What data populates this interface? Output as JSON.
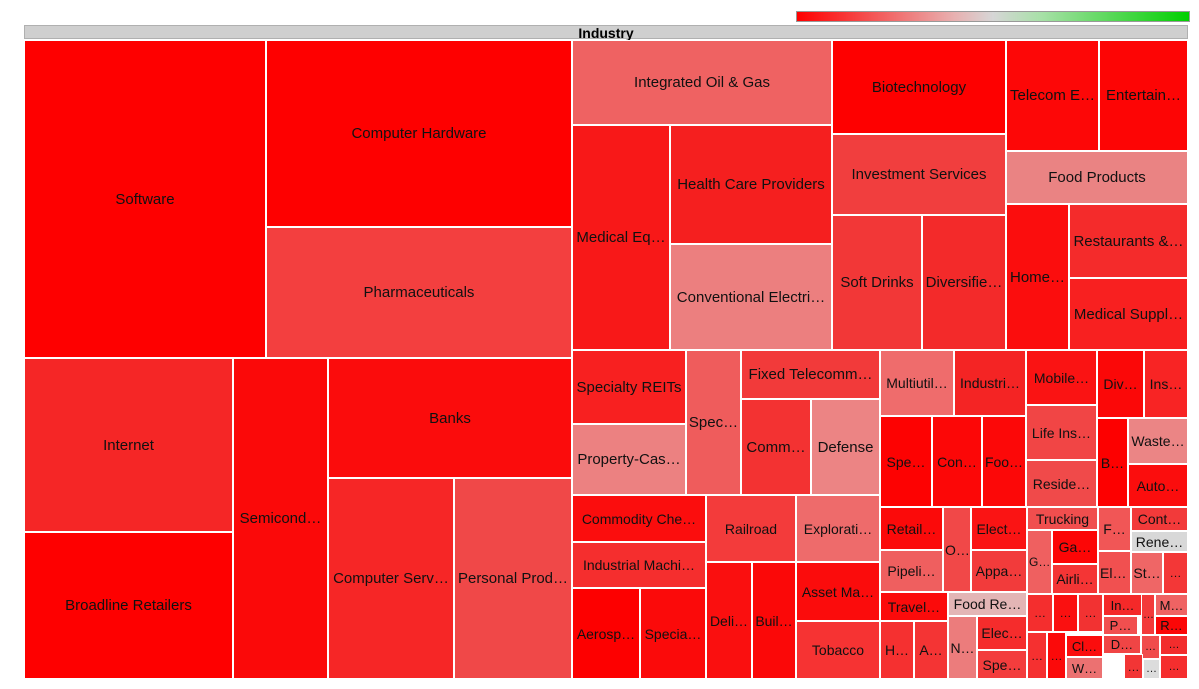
{
  "chart_data": {
    "type": "treemap",
    "title": "Industry",
    "colorscale": [
      "#ff0000",
      "#d6d6d6",
      "#00d000"
    ],
    "items": [
      {
        "label": "Software",
        "color": "#fe0000"
      },
      {
        "label": "Computer Hardware",
        "color": "#fe0000"
      },
      {
        "label": "Pharmaceuticals",
        "color": "#f33f3f"
      },
      {
        "label": "Integrated Oil & Gas",
        "color": "#ef6262"
      },
      {
        "label": "Biotechnology",
        "color": "#fe0000"
      },
      {
        "label": "Telecom E…",
        "color": "#fd0707"
      },
      {
        "label": "Entertain…",
        "color": "#fd0505"
      },
      {
        "label": "Medical Eq…",
        "color": "#f81818"
      },
      {
        "label": "Health Care Providers",
        "color": "#f51f1f"
      },
      {
        "label": "Investment Services",
        "color": "#f13e3e"
      },
      {
        "label": "Food Products",
        "color": "#ea8383"
      },
      {
        "label": "Conventional Electri…",
        "color": "#ec7f7f"
      },
      {
        "label": "Soft Drinks",
        "color": "#f23737"
      },
      {
        "label": "Diversifie…",
        "color": "#f32a2a"
      },
      {
        "label": "Home…",
        "color": "#fb0d0d"
      },
      {
        "label": "Restaurants &…",
        "color": "#f42b2b"
      },
      {
        "label": "Medical Suppl…",
        "color": "#f82020"
      },
      {
        "label": "Internet",
        "color": "#f52626"
      },
      {
        "label": "Broadline Retailers",
        "color": "#fe0000"
      },
      {
        "label": "Semicond…",
        "color": "#fb0909"
      },
      {
        "label": "Banks",
        "color": "#fb0c0c"
      },
      {
        "label": "Computer Serv…",
        "color": "#f62626"
      },
      {
        "label": "Personal Prod…",
        "color": "#f04848"
      },
      {
        "label": "Specialty REITs",
        "color": "#f82020"
      },
      {
        "label": "Property-Cas…",
        "color": "#ec8181"
      },
      {
        "label": "Spec…",
        "color": "#ef5c5c"
      },
      {
        "label": "Fixed Telecomm…",
        "color": "#f23a3a"
      },
      {
        "label": "Comm…",
        "color": "#f33232"
      },
      {
        "label": "Defense",
        "color": "#ec8484"
      },
      {
        "label": "Multiutil…",
        "color": "#ef6c6c"
      },
      {
        "label": "Industri…",
        "color": "#f42424"
      },
      {
        "label": "Mobile…",
        "color": "#fa1313"
      },
      {
        "label": "Div…",
        "color": "#fb0808"
      },
      {
        "label": "Ins…",
        "color": "#f82424"
      },
      {
        "label": "Spe…",
        "color": "#fd0202"
      },
      {
        "label": "Con…",
        "color": "#fc0707"
      },
      {
        "label": "Foo…",
        "color": "#fc0808"
      },
      {
        "label": "Life Ins…",
        "color": "#f14545"
      },
      {
        "label": "Reside…",
        "color": "#f04a4a"
      },
      {
        "label": "B…",
        "color": "#fd0000"
      },
      {
        "label": "Waste…",
        "color": "#eb8585"
      },
      {
        "label": "Auto…",
        "color": "#fb0d0d"
      },
      {
        "label": "Commodity Che…",
        "color": "#fb0d0d"
      },
      {
        "label": "Industrial Machi…",
        "color": "#f52e2e"
      },
      {
        "label": "Railroad",
        "color": "#f33b3b"
      },
      {
        "label": "Explorati…",
        "color": "#ee6b6b"
      },
      {
        "label": "Aerosp…",
        "color": "#fd0000"
      },
      {
        "label": "Specia…",
        "color": "#fb0a0a"
      },
      {
        "label": "Deli…",
        "color": "#fa0f0f"
      },
      {
        "label": "Buil…",
        "color": "#fb0808"
      },
      {
        "label": "Asset Ma…",
        "color": "#fb0c0c"
      },
      {
        "label": "Tobacco",
        "color": "#f63333"
      },
      {
        "label": "Retail…",
        "color": "#fb0a0a"
      },
      {
        "label": "O…",
        "color": "#f14848"
      },
      {
        "label": "Elect…",
        "color": "#fa1414"
      },
      {
        "label": "Pipeli…",
        "color": "#ef5f5f"
      },
      {
        "label": "Appa…",
        "color": "#f23b3b"
      },
      {
        "label": "Travel…",
        "color": "#fb0b0b"
      },
      {
        "label": "Food Re…",
        "color": "#e3b5b5"
      },
      {
        "label": "H…",
        "color": "#f53030"
      },
      {
        "label": "A…",
        "color": "#f43434"
      },
      {
        "label": "N…",
        "color": "#ec7c7c"
      },
      {
        "label": "Elec…",
        "color": "#f52c2c"
      },
      {
        "label": "Spe…",
        "color": "#f33d3d"
      },
      {
        "label": "Trucking",
        "color": "#f04e4e"
      },
      {
        "label": "F…",
        "color": "#f15656"
      },
      {
        "label": "Cont…",
        "color": "#f23a3a"
      },
      {
        "label": "Rene…",
        "color": "#d8d8d8"
      },
      {
        "label": "Ga…",
        "color": "#fc0606"
      },
      {
        "label": "Airli…",
        "color": "#f43535"
      },
      {
        "label": "Elec…",
        "color": "#f15050"
      },
      {
        "label": "St…",
        "color": "#ef6666"
      },
      {
        "label": "In…",
        "color": "#f42929"
      },
      {
        "label": "M…",
        "color": "#ef6363"
      },
      {
        "label": "P…",
        "color": "#f14f4f"
      },
      {
        "label": "R…",
        "color": "#fb0707"
      },
      {
        "label": "D…",
        "color": "#f04545"
      },
      {
        "label": "Cl…",
        "color": "#fb0d0d"
      },
      {
        "label": "W…",
        "color": "#ec7171"
      },
      {
        "label": "G…",
        "color": "#ef6060"
      },
      {
        "label": "…",
        "color": "#f42e2e"
      },
      {
        "label": "…",
        "color": "#fa1010"
      },
      {
        "label": "…",
        "color": "#f23232"
      },
      {
        "label": "…",
        "color": "#f53030"
      },
      {
        "label": "…",
        "color": "#fb0a0a"
      },
      {
        "label": "…",
        "color": "#f33a3a"
      },
      {
        "label": "…",
        "color": "#f04c4c"
      },
      {
        "label": "…",
        "color": "#f23535"
      },
      {
        "label": "…",
        "color": "#dcdcdc"
      },
      {
        "label": "…",
        "color": "#f22d2d"
      },
      {
        "label": "…",
        "color": "#f33737"
      },
      {
        "label": "…",
        "color": "#f52e2e"
      },
      {
        "label": "…",
        "color": "#ee6767"
      }
    ]
  }
}
